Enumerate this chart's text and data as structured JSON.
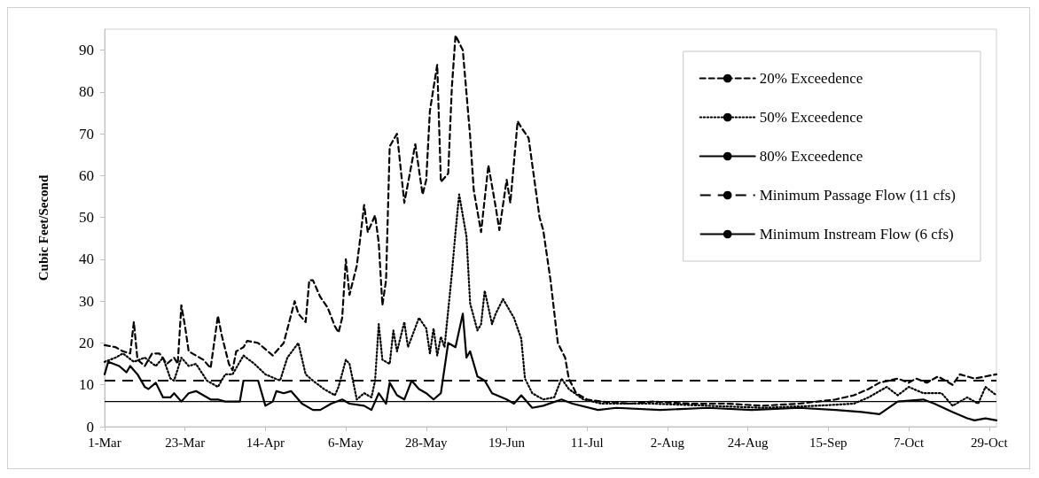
{
  "chart_data": {
    "type": "line",
    "ylabel": "Cubic Feet/Second",
    "xlim": [
      "--03-01",
      "--10-31"
    ],
    "xticks": [
      {
        "value": "--03-01",
        "label": "1-Mar"
      },
      {
        "value": "--03-23",
        "label": "23-Mar"
      },
      {
        "value": "--04-14",
        "label": "14-Apr"
      },
      {
        "value": "--05-06",
        "label": "6-May"
      },
      {
        "value": "--05-28",
        "label": "28-May"
      },
      {
        "value": "--06-19",
        "label": "19-Jun"
      },
      {
        "value": "--07-11",
        "label": "11-Jul"
      },
      {
        "value": "--08-02",
        "label": "2-Aug"
      },
      {
        "value": "--08-24",
        "label": "24-Aug"
      },
      {
        "value": "--09-15",
        "label": "15-Sep"
      },
      {
        "value": "--10-07",
        "label": "7-Oct"
      },
      {
        "value": "--10-29",
        "label": "29-Oct"
      }
    ],
    "ylim": [
      0,
      95
    ],
    "yticks": [
      0,
      10,
      20,
      30,
      40,
      50,
      60,
      70,
      80,
      90
    ],
    "legend": "top right",
    "marker": "none",
    "series": [
      {
        "name": "20% Exceedence",
        "color": "#000000",
        "line_style": "dashed",
        "x": [
          "--03-01",
          "--03-04",
          "--03-06",
          "--03-08",
          "--03-09",
          "--03-10",
          "--03-12",
          "--03-14",
          "--03-16",
          "--03-18",
          "--03-20",
          "--03-21",
          "--03-22",
          "--03-23",
          "--03-24",
          "--03-26",
          "--03-28",
          "--03-30",
          "--04-01",
          "--04-02",
          "--04-04",
          "--04-05",
          "--04-06",
          "--04-08",
          "--04-09",
          "--04-12",
          "--04-16",
          "--04-19",
          "--04-22",
          "--04-23",
          "--04-25",
          "--04-26",
          "--04-27",
          "--04-29",
          "--05-01",
          "--05-03",
          "--05-04",
          "--05-05",
          "--05-06",
          "--05-07",
          "--05-09",
          "--05-10",
          "--05-11",
          "--05-12",
          "--05-14",
          "--05-15",
          "--05-16",
          "--05-17",
          "--05-18",
          "--05-20",
          "--05-22",
          "--05-25",
          "--05-27",
          "--05-28",
          "--05-29",
          "--05-31",
          "--06-01",
          "--06-03",
          "--06-04",
          "--06-05",
          "--06-07",
          "--06-09",
          "--06-10",
          "--06-12",
          "--06-14",
          "--06-16",
          "--06-17",
          "--06-19",
          "--06-20",
          "--06-22",
          "--06-23",
          "--06-25",
          "--06-28",
          "--06-29",
          "--07-01",
          "--07-03",
          "--07-05",
          "--07-06",
          "--07-08",
          "--07-11",
          "--07-15",
          "--07-23",
          "--07-29",
          "--08-08",
          "--08-18",
          "--08-28",
          "--09-07",
          "--09-17",
          "--09-22",
          "--09-26",
          "--09-29",
          "--10-04",
          "--10-07",
          "--10-09",
          "--10-12",
          "--10-15",
          "--10-19",
          "--10-21",
          "--10-25",
          "--10-28",
          "--10-31"
        ],
        "values": [
          19.5,
          19,
          18,
          17.5,
          25,
          16,
          14.5,
          17.5,
          17.5,
          15,
          16.5,
          15,
          29,
          24,
          18,
          17,
          16,
          14,
          26.5,
          22,
          15,
          13.5,
          18,
          19,
          20.5,
          20,
          17,
          20,
          30,
          27,
          25,
          35,
          35,
          31,
          28.5,
          24,
          22.5,
          26,
          40,
          31.5,
          38.5,
          45.5,
          53,
          46.5,
          50.5,
          44,
          29,
          35,
          67,
          70,
          53.5,
          67.5,
          55.5,
          59,
          75.5,
          86.5,
          58.5,
          60.5,
          81,
          93.5,
          90,
          69.5,
          56.5,
          46.5,
          62.5,
          52.5,
          47,
          59,
          53.5,
          73,
          71.5,
          69,
          50,
          47,
          35,
          20,
          16.5,
          11.5,
          8,
          6.5,
          6,
          5.5,
          6,
          5.5,
          5.5,
          5,
          5.5,
          6.5,
          7.5,
          9,
          10.5,
          11.5,
          10.5,
          11.5,
          10.5,
          12,
          10,
          12.5,
          11.5,
          12,
          12.5
        ]
      },
      {
        "name": "50% Exceedence",
        "color": "#000000",
        "line_style": "dotted",
        "x": [
          "--03-01",
          "--03-04",
          "--03-06",
          "--03-09",
          "--03-12",
          "--03-15",
          "--03-17",
          "--03-19",
          "--03-20",
          "--03-22",
          "--03-24",
          "--03-26",
          "--03-29",
          "--04-01",
          "--04-03",
          "--04-05",
          "--04-08",
          "--04-11",
          "--04-14",
          "--04-18",
          "--04-20",
          "--04-23",
          "--04-25",
          "--04-27",
          "--04-30",
          "--05-03",
          "--05-04",
          "--05-06",
          "--05-07",
          "--05-09",
          "--05-11",
          "--05-13",
          "--05-14",
          "--05-15",
          "--05-16",
          "--05-18",
          "--05-19",
          "--05-20",
          "--05-22",
          "--05-23",
          "--05-26",
          "--05-28",
          "--05-29",
          "--05-30",
          "--05-31",
          "--06-01",
          "--06-02",
          "--06-04",
          "--06-05",
          "--06-06",
          "--06-08",
          "--06-09",
          "--06-11",
          "--06-12",
          "--06-13",
          "--06-15",
          "--06-16",
          "--06-18",
          "--06-21",
          "--06-23",
          "--06-24",
          "--06-26",
          "--06-29",
          "--07-02",
          "--07-04",
          "--07-06",
          "--07-10",
          "--07-15",
          "--07-29",
          "--08-13",
          "--08-28",
          "--09-12",
          "--09-22",
          "--09-26",
          "--10-01",
          "--10-04",
          "--10-07",
          "--10-11",
          "--10-16",
          "--10-19",
          "--10-23",
          "--10-26",
          "--10-28",
          "--10-31"
        ],
        "values": [
          15.5,
          16.5,
          17.5,
          15.5,
          16.5,
          14.5,
          16.5,
          11.5,
          11,
          16.5,
          14.5,
          15,
          11,
          9.5,
          12.5,
          12.5,
          17,
          15,
          12.5,
          11,
          16.5,
          20,
          12.5,
          11,
          9,
          7.5,
          9.5,
          16,
          15,
          6.5,
          8,
          7,
          11,
          24.5,
          16,
          15,
          23,
          18,
          25,
          19,
          26,
          23.5,
          17.5,
          23.5,
          17,
          21.5,
          19,
          36.5,
          46.5,
          55.5,
          45.5,
          29.5,
          23,
          24.5,
          32.5,
          24.5,
          27,
          30.5,
          26,
          21,
          11.5,
          8,
          6.5,
          7,
          11.5,
          9,
          6.5,
          5.5,
          5.5,
          5,
          4.5,
          5,
          5.5,
          7,
          9.5,
          7.5,
          9.5,
          8,
          8,
          5,
          7,
          5.5,
          9.5,
          7.5
        ]
      },
      {
        "name": "80% Exceedence",
        "color": "#000000",
        "line_style": "solid",
        "x": [
          "--03-01",
          "--03-02",
          "--03-05",
          "--03-07",
          "--03-08",
          "--03-10",
          "--03-12",
          "--03-13",
          "--03-15",
          "--03-17",
          "--03-19",
          "--03-20",
          "--03-22",
          "--03-24",
          "--03-26",
          "--03-30",
          "--04-01",
          "--04-03",
          "--04-07",
          "--04-08",
          "--04-12",
          "--04-14",
          "--04-16",
          "--04-17",
          "--04-19",
          "--04-21",
          "--04-24",
          "--04-27",
          "--04-29",
          "--05-02",
          "--05-05",
          "--05-07",
          "--05-11",
          "--05-13",
          "--05-15",
          "--05-17",
          "--05-18",
          "--05-20",
          "--05-22",
          "--05-24",
          "--05-26",
          "--05-28",
          "--05-30",
          "--06-01",
          "--06-03",
          "--06-05",
          "--06-07",
          "--06-08",
          "--06-09",
          "--06-11",
          "--06-13",
          "--06-15",
          "--06-19",
          "--06-21",
          "--06-23",
          "--06-26",
          "--06-29",
          "--07-04",
          "--07-07",
          "--07-14",
          "--07-19",
          "--07-31",
          "--08-13",
          "--08-25",
          "--09-07",
          "--09-17",
          "--09-24",
          "--09-29",
          "--10-04",
          "--10-11",
          "--10-14",
          "--10-19",
          "--10-23",
          "--10-25",
          "--10-28",
          "--10-31"
        ],
        "values": [
          12.5,
          15.5,
          14.5,
          13,
          14.5,
          12.5,
          9.5,
          9,
          10.5,
          7,
          7,
          8,
          6,
          8,
          8.5,
          6.5,
          6.5,
          6,
          6,
          11,
          11,
          5,
          6,
          8.5,
          8,
          8.5,
          5.5,
          4,
          4,
          5.5,
          6.5,
          5.5,
          5,
          4,
          8,
          5.5,
          10.5,
          7.5,
          6.5,
          11,
          9,
          8,
          6.5,
          8,
          20,
          19,
          27,
          16.5,
          18,
          12,
          11,
          8,
          6.5,
          5.5,
          7.5,
          4.5,
          5,
          6.5,
          5.5,
          4,
          4.5,
          4,
          4.5,
          4,
          4.5,
          4,
          3.5,
          3,
          6,
          6.5,
          5.5,
          3.5,
          2,
          1.5,
          2,
          1.5
        ]
      }
    ],
    "ref_lines": [
      {
        "axis": "y",
        "value": 11,
        "label": "Minimum Passage Flow (11 cfs)",
        "line_style": "dashed",
        "color": "#000000"
      },
      {
        "axis": "y",
        "value": 6,
        "label": "Minimum Instream Flow (6 cfs)",
        "line_style": "solid",
        "color": "#000000"
      }
    ]
  }
}
